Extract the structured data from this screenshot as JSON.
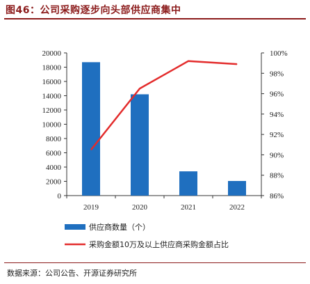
{
  "figure": {
    "title": "图46：公司采购逐步向头部供应商集中",
    "source": "数据来源：公司公告、开源证券研究所"
  },
  "colors": {
    "bar": "#1f6fbf",
    "line": "#e32b2b",
    "title": "#8b1a1a"
  },
  "chart_data": {
    "type": "bar+line",
    "categories": [
      "2019",
      "2020",
      "2021",
      "2022"
    ],
    "series": [
      {
        "name": "供应商数量（个）",
        "type": "bar",
        "axis": "left",
        "values": [
          18700,
          14200,
          3400,
          2050
        ]
      },
      {
        "name": "采购金额10万及以上供应商采购金额占比",
        "type": "line",
        "axis": "right",
        "values": [
          90.5,
          96.5,
          99.2,
          98.9
        ]
      }
    ],
    "y_left": {
      "min": 0,
      "max": 20000,
      "step": 2000,
      "ticks": [
        "0",
        "2000",
        "4000",
        "6000",
        "8000",
        "10000",
        "12000",
        "14000",
        "16000",
        "18000",
        "20000"
      ]
    },
    "y_right": {
      "min": 86,
      "max": 100,
      "step": 2,
      "ticks": [
        "86%",
        "88%",
        "90%",
        "92%",
        "94%",
        "96%",
        "98%",
        "100%"
      ]
    },
    "legend_position": "bottom",
    "grid": false
  }
}
